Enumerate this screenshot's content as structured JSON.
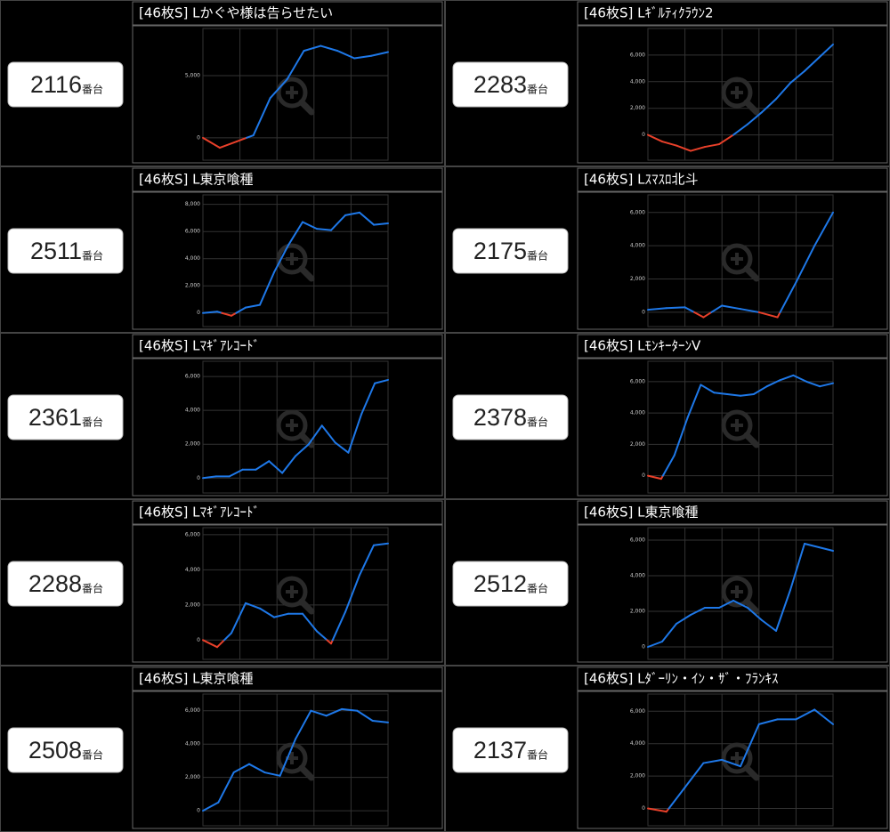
{
  "chart_data": [
    {
      "type": "line",
      "label": "2116",
      "label_suffix": "番台",
      "title": "[46枚S] Lかぐや様は告らせたい",
      "values": [
        0,
        -800,
        -300,
        200,
        3200,
        4700,
        7000,
        7400,
        7000,
        6400,
        6600,
        6900
      ],
      "color": "#1e78e8",
      "negative_color": "#e8402a",
      "ylim": [
        -1800,
        8800
      ],
      "yticks": [
        0,
        {
          "value": 5000,
          "label": "5,000"
        }
      ],
      "grid": true
    },
    {
      "type": "line",
      "label": "2283",
      "label_suffix": "番台",
      "title": "[46枚S] Lｷﾞﾙﾃｨｸﾗｳﾝ2",
      "values": [
        0,
        -500,
        -800,
        -1200,
        -900,
        -700,
        0,
        800,
        1700,
        2700,
        3900,
        4800,
        5800,
        6800
      ],
      "color": "#1e78e8",
      "negative_color": "#e8402a",
      "ylim": [
        -1900,
        8000
      ],
      "yticks": [
        0,
        {
          "value": 2000,
          "label": "2,000"
        },
        {
          "value": 4000,
          "label": "4,000"
        },
        {
          "value": 6000,
          "label": "6,000"
        }
      ],
      "grid": true
    },
    {
      "type": "line",
      "label": "2511",
      "label_suffix": "番台",
      "title": "[46枚S] L東京喰種",
      "values": [
        0,
        100,
        -200,
        400,
        600,
        3000,
        5000,
        6700,
        6200,
        6100,
        7200,
        7400,
        6500,
        6600
      ],
      "color": "#1e78e8",
      "negative_color": "#e8402a",
      "ylim": [
        -1000,
        8700
      ],
      "yticks": [
        0,
        {
          "value": 2000,
          "label": "2,000"
        },
        {
          "value": 4000,
          "label": "4,000"
        },
        {
          "value": 6000,
          "label": "6,000"
        },
        {
          "value": 8000,
          "label": "8,000"
        }
      ],
      "grid": true
    },
    {
      "type": "line",
      "label": "2175",
      "label_suffix": "番台",
      "title": "[46枚S] Lｽﾏｽﾛ北斗",
      "values": [
        150,
        250,
        300,
        -300,
        400,
        200,
        0,
        -300,
        1800,
        4000,
        6000
      ],
      "color": "#1e78e8",
      "negative_color": "#e8402a",
      "ylim": [
        -860,
        7060
      ],
      "yticks": [
        0,
        {
          "value": 2000,
          "label": "2,000"
        },
        {
          "value": 4000,
          "label": "4,000"
        },
        {
          "value": 6000,
          "label": "6,000"
        }
      ],
      "grid": true
    },
    {
      "type": "line",
      "label": "2361",
      "label_suffix": "番台",
      "title": "[46枚S] Lﾏｷﾞｱﾚｺｰﾄﾞ",
      "values": [
        0,
        100,
        100,
        500,
        500,
        1000,
        300,
        1300,
        2000,
        3100,
        2100,
        1500,
        3800,
        5600,
        5800
      ],
      "color": "#1e78e8",
      "negative_color": "#e8402a",
      "ylim": [
        -880,
        6900
      ],
      "yticks": [
        0,
        {
          "value": 2000,
          "label": "2,000"
        },
        {
          "value": 4000,
          "label": "4,000"
        },
        {
          "value": 6000,
          "label": "6,000"
        }
      ],
      "grid": true
    },
    {
      "type": "line",
      "label": "2378",
      "label_suffix": "番台",
      "title": "[46枚S] LﾓﾝｷｰﾀｰﾝV",
      "values": [
        0,
        -200,
        1300,
        3700,
        5800,
        5300,
        5200,
        5100,
        5200,
        5700,
        6100,
        6400,
        6000,
        5700,
        5900
      ],
      "color": "#1e78e8",
      "negative_color": "#e8402a",
      "ylim": [
        -1100,
        7300
      ],
      "yticks": [
        0,
        {
          "value": 2000,
          "label": "2,000"
        },
        {
          "value": 4000,
          "label": "4,000"
        },
        {
          "value": 6000,
          "label": "6,000"
        }
      ],
      "grid": true
    },
    {
      "type": "line",
      "label": "2288",
      "label_suffix": "番台",
      "title": "[46枚S] Lﾏｷﾞｱﾚｺｰﾄﾞ",
      "values": [
        0,
        -400,
        400,
        2100,
        1800,
        1300,
        1500,
        1500,
        500,
        -200,
        1600,
        3700,
        5400,
        5500
      ],
      "color": "#1e78e8",
      "negative_color": "#e8402a",
      "ylim": [
        -1100,
        6400
      ],
      "yticks": [
        0,
        {
          "value": 2000,
          "label": "2,000"
        },
        {
          "value": 4000,
          "label": "4,000"
        },
        {
          "value": 6000,
          "label": "6,000"
        }
      ],
      "grid": true
    },
    {
      "type": "line",
      "label": "2512",
      "label_suffix": "番台",
      "title": "[46枚S] L東京喰種",
      "values": [
        0,
        300,
        1300,
        1800,
        2200,
        2200,
        2600,
        2200,
        1500,
        900,
        3200,
        5800,
        5600,
        5400
      ],
      "color": "#1e78e8",
      "negative_color": "#e8402a",
      "ylim": [
        -700,
        6700
      ],
      "yticks": [
        0,
        {
          "value": 2000,
          "label": "2,000"
        },
        {
          "value": 4000,
          "label": "4,000"
        },
        {
          "value": 6000,
          "label": "6,000"
        }
      ],
      "grid": true
    },
    {
      "type": "line",
      "label": "2508",
      "label_suffix": "番台",
      "title": "[46枚S] L東京喰種",
      "values": [
        0,
        500,
        2300,
        2800,
        2300,
        2100,
        4300,
        6000,
        5700,
        6100,
        6000,
        5400,
        5300
      ],
      "color": "#1e78e8",
      "negative_color": "#e8402a",
      "ylim": [
        -900,
        7000
      ],
      "yticks": [
        0,
        {
          "value": 2000,
          "label": "2,000"
        },
        {
          "value": 4000,
          "label": "4,000"
        },
        {
          "value": 6000,
          "label": "6,000"
        }
      ],
      "grid": true
    },
    {
      "type": "line",
      "label": "2137",
      "label_suffix": "番台",
      "title": "[46枚S] Lﾀﾞｰﾘﾝ・ｲﾝ・ｻﾞ・ﾌﾗﾝｷｽ",
      "values": [
        0,
        -200,
        1300,
        2800,
        3000,
        2600,
        5200,
        5500,
        5500,
        6100,
        5200
      ],
      "color": "#1e78e8",
      "negative_color": "#e8402a",
      "ylim": [
        -1070,
        7060
      ],
      "yticks": [
        0,
        {
          "value": 2000,
          "label": "2,000"
        },
        {
          "value": 4000,
          "label": "4,000"
        },
        {
          "value": 6000,
          "label": "6,000"
        }
      ],
      "grid": true
    }
  ]
}
